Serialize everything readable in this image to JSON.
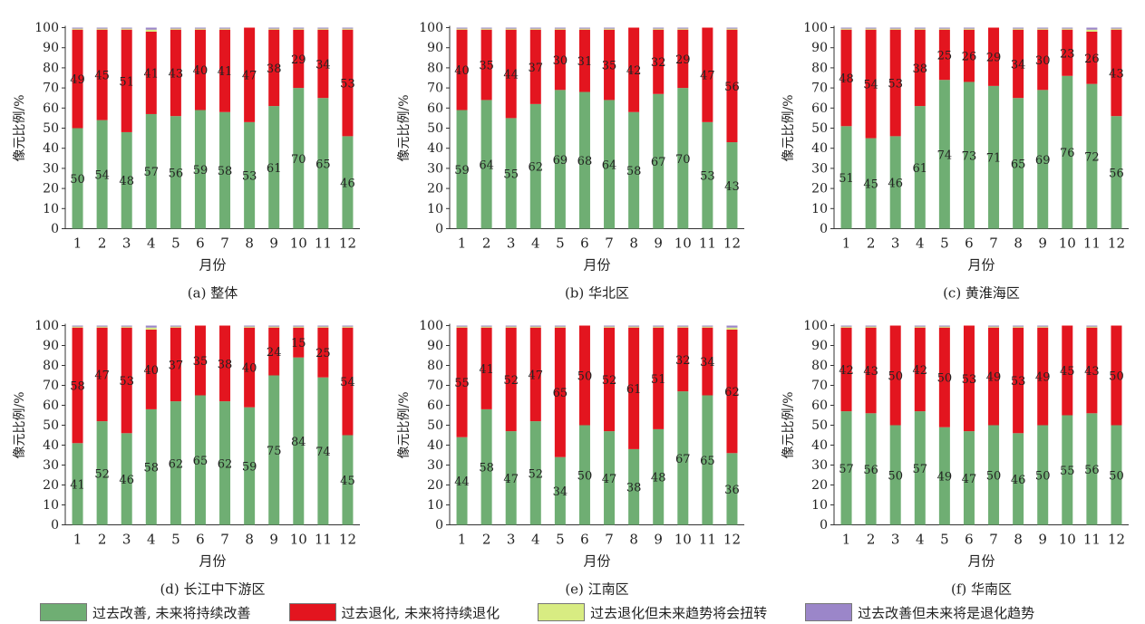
{
  "colors": {
    "improve_continue": "#6fae73",
    "degrade_continue": "#e3151f",
    "degrade_then_reverse": "#d8ec82",
    "improve_then_degrade": "#9b86c9"
  },
  "legend": [
    {
      "label": "过去改善, 未来将持续改善",
      "color": "#6fae73"
    },
    {
      "label": "过去退化, 未来将持续退化",
      "color": "#e3151f"
    },
    {
      "label": "过去退化但未来趋势将会扭转",
      "color": "#d8ec82"
    },
    {
      "label": "过去改善但未来将是退化趋势",
      "color": "#9b86c9"
    }
  ],
  "chart_data": [
    {
      "type": "bar",
      "stacked": true,
      "title": "(a) 整体",
      "xlabel": "月份",
      "ylabel": "像元比例/%",
      "ylim": [
        0,
        100
      ],
      "yticks": [
        0,
        10,
        20,
        30,
        40,
        50,
        60,
        70,
        80,
        90,
        100
      ],
      "categories": [
        "1",
        "2",
        "3",
        "4",
        "5",
        "6",
        "7",
        "8",
        "9",
        "10",
        "11",
        "12"
      ],
      "series": [
        {
          "name": "过去改善, 未来将持续改善",
          "values": [
            50,
            54,
            48,
            57,
            56,
            59,
            58,
            53,
            61,
            70,
            65,
            46
          ]
        },
        {
          "name": "过去退化, 未来将持续退化",
          "values": [
            49,
            45,
            51,
            41,
            43,
            40,
            41,
            47,
            38,
            29,
            34,
            53
          ]
        }
      ]
    },
    {
      "type": "bar",
      "stacked": true,
      "title": "(b) 华北区",
      "xlabel": "月份",
      "ylabel": "像元比例/%",
      "ylim": [
        0,
        100
      ],
      "yticks": [
        0,
        10,
        20,
        30,
        40,
        50,
        60,
        70,
        80,
        90,
        100
      ],
      "categories": [
        "1",
        "2",
        "3",
        "4",
        "5",
        "6",
        "7",
        "8",
        "9",
        "10",
        "11",
        "12"
      ],
      "series": [
        {
          "name": "过去改善, 未来将持续改善",
          "values": [
            59,
            64,
            55,
            62,
            69,
            68,
            64,
            58,
            67,
            70,
            53,
            43
          ]
        },
        {
          "name": "过去退化, 未来将持续退化",
          "values": [
            40,
            35,
            44,
            37,
            30,
            31,
            35,
            42,
            32,
            29,
            47,
            56
          ]
        }
      ]
    },
    {
      "type": "bar",
      "stacked": true,
      "title": "(c) 黄淮海区",
      "xlabel": "月份",
      "ylabel": "像元比例/%",
      "ylim": [
        0,
        100
      ],
      "yticks": [
        0,
        10,
        20,
        30,
        40,
        50,
        60,
        70,
        80,
        90,
        100
      ],
      "categories": [
        "1",
        "2",
        "3",
        "4",
        "5",
        "6",
        "7",
        "8",
        "9",
        "10",
        "11",
        "12"
      ],
      "series": [
        {
          "name": "过去改善, 未来将持续改善",
          "values": [
            51,
            45,
            46,
            61,
            74,
            73,
            71,
            65,
            69,
            76,
            72,
            56
          ]
        },
        {
          "name": "过去退化, 未来将持续退化",
          "values": [
            48,
            54,
            53,
            38,
            25,
            26,
            29,
            34,
            30,
            23,
            26,
            43
          ]
        }
      ]
    },
    {
      "type": "bar",
      "stacked": true,
      "title": "(d) 长江中下游区",
      "xlabel": "月份",
      "ylabel": "像元比例/%",
      "ylim": [
        0,
        100
      ],
      "yticks": [
        0,
        10,
        20,
        30,
        40,
        50,
        60,
        70,
        80,
        90,
        100
      ],
      "categories": [
        "1",
        "2",
        "3",
        "4",
        "5",
        "6",
        "7",
        "8",
        "9",
        "10",
        "11",
        "12"
      ],
      "series": [
        {
          "name": "过去改善, 未来将持续改善",
          "values": [
            41,
            52,
            46,
            58,
            62,
            65,
            62,
            59,
            75,
            84,
            74,
            45
          ]
        },
        {
          "name": "过去退化, 未来将持续退化",
          "values": [
            58,
            47,
            53,
            40,
            37,
            35,
            38,
            40,
            24,
            15,
            25,
            54
          ]
        }
      ]
    },
    {
      "type": "bar",
      "stacked": true,
      "title": "(e) 江南区",
      "xlabel": "月份",
      "ylabel": "像元比例/%",
      "ylim": [
        0,
        100
      ],
      "yticks": [
        0,
        10,
        20,
        30,
        40,
        50,
        60,
        70,
        80,
        90,
        100
      ],
      "categories": [
        "1",
        "2",
        "3",
        "4",
        "5",
        "6",
        "7",
        "8",
        "9",
        "10",
        "11",
        "12"
      ],
      "series": [
        {
          "name": "过去改善, 未来将持续改善",
          "values": [
            44,
            58,
            47,
            52,
            34,
            50,
            47,
            38,
            48,
            67,
            65,
            36
          ]
        },
        {
          "name": "过去退化, 未来将持续退化",
          "values": [
            55,
            41,
            52,
            47,
            65,
            50,
            52,
            61,
            51,
            32,
            34,
            62
          ]
        }
      ]
    },
    {
      "type": "bar",
      "stacked": true,
      "title": "(f) 华南区",
      "xlabel": "月份",
      "ylabel": "像元比例/%",
      "ylim": [
        0,
        100
      ],
      "yticks": [
        0,
        10,
        20,
        30,
        40,
        50,
        60,
        70,
        80,
        90,
        100
      ],
      "categories": [
        "1",
        "2",
        "3",
        "4",
        "5",
        "6",
        "7",
        "8",
        "9",
        "10",
        "11",
        "12"
      ],
      "series": [
        {
          "name": "过去改善, 未来将持续改善",
          "values": [
            57,
            56,
            50,
            57,
            49,
            47,
            50,
            46,
            50,
            55,
            56,
            50
          ]
        },
        {
          "name": "过去退化, 未来将持续退化",
          "values": [
            42,
            43,
            50,
            42,
            50,
            53,
            49,
            53,
            49,
            45,
            43,
            50
          ]
        }
      ]
    }
  ]
}
